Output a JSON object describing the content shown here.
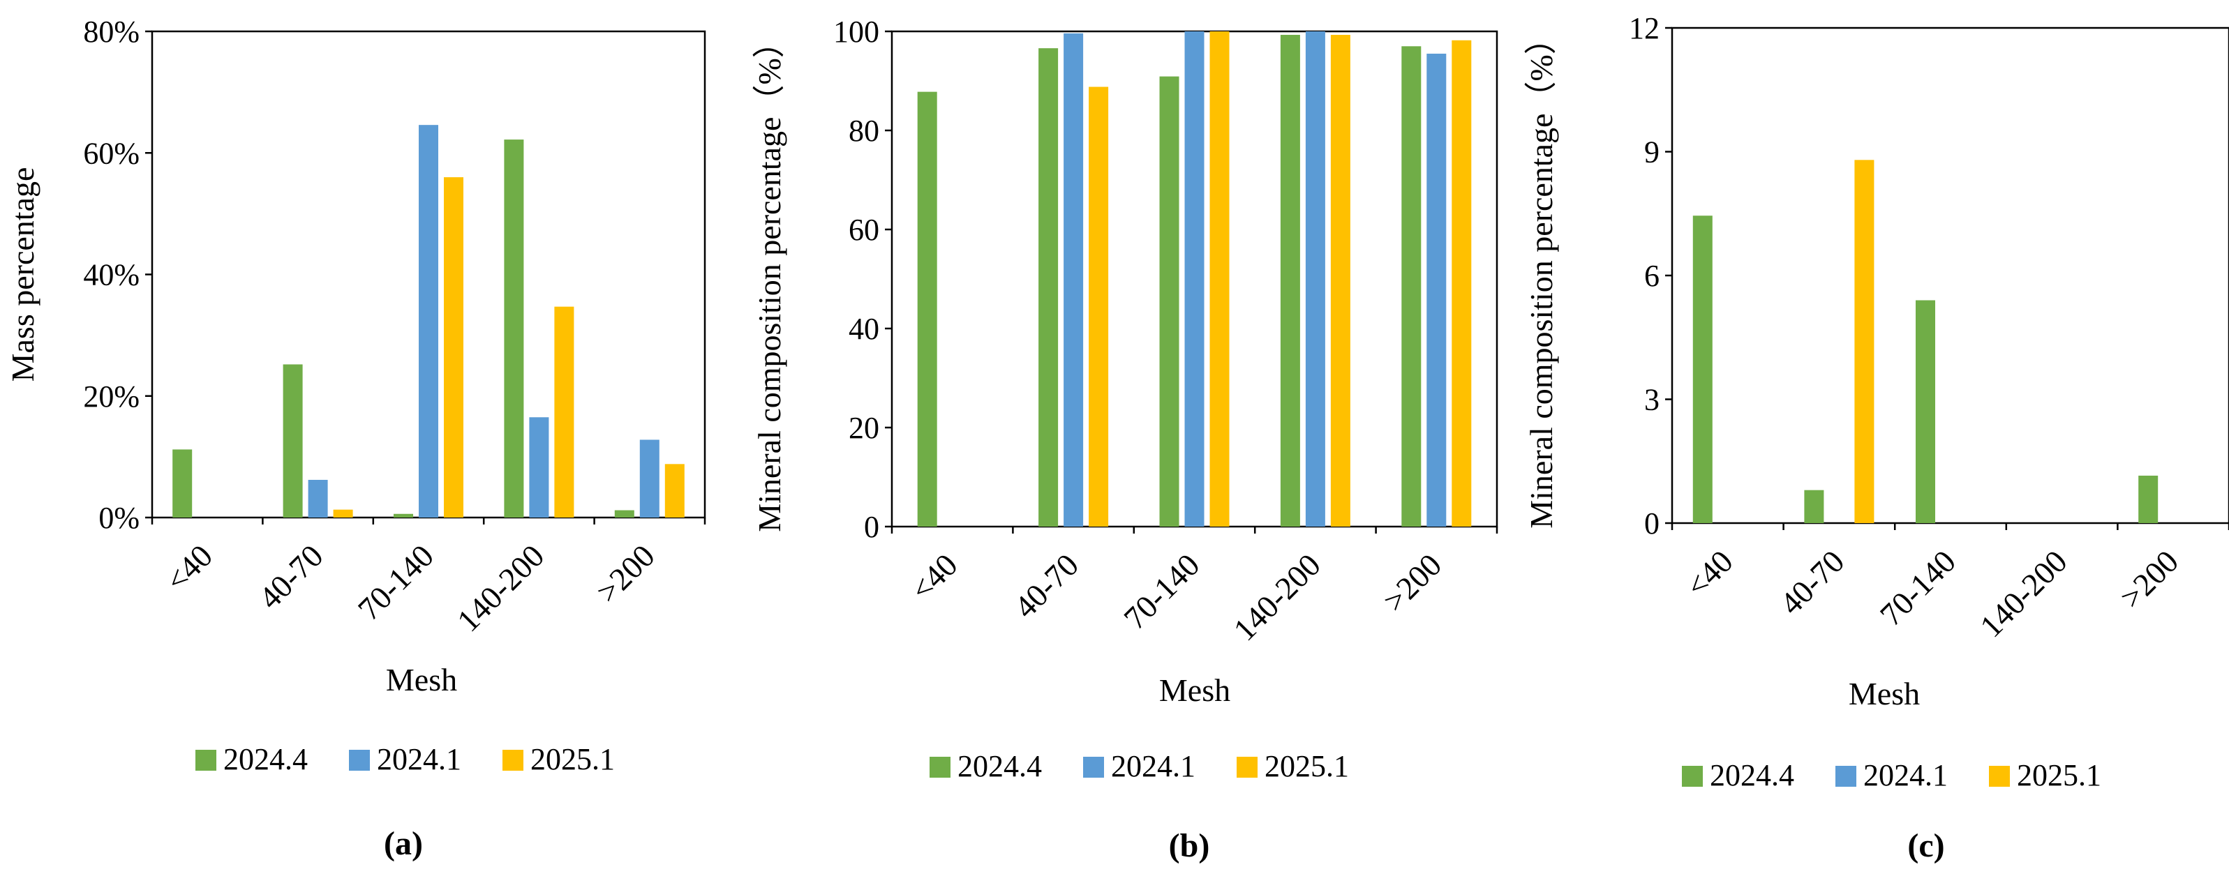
{
  "colors": {
    "2024.4": "#70AD47",
    "2024.1": "#5B9BD5",
    "2025.1": "#FFC000"
  },
  "legend_labels": [
    "2024.4",
    "2024.1",
    "2025.1"
  ],
  "chart_data": [
    {
      "type": "bar",
      "panel": "(a)",
      "title": "",
      "xlabel": "Mesh",
      "ylabel": "Mass percentage",
      "categories": [
        "<40",
        "40-70",
        "70-140",
        "140-200",
        ">200"
      ],
      "ylim": [
        0,
        80
      ],
      "yticks": [
        0,
        20,
        40,
        60,
        80
      ],
      "ytick_labels": [
        "0%",
        "20%",
        "40%",
        "60%",
        "80%"
      ],
      "grid": false,
      "legend": "bottom",
      "series": [
        {
          "name": "2024.4",
          "values": [
            11.2,
            25.2,
            0.6,
            62.2,
            1.2
          ]
        },
        {
          "name": "2024.1",
          "values": [
            0,
            6.2,
            64.6,
            16.5,
            12.8
          ]
        },
        {
          "name": "2025.1",
          "values": [
            0,
            1.3,
            56.0,
            34.7,
            8.8
          ]
        }
      ]
    },
    {
      "type": "bar",
      "panel": "(b)",
      "title": "",
      "xlabel": "Mesh",
      "ylabel": "Mineral composition percentage（%）",
      "categories": [
        "<40",
        "40-70",
        "70-140",
        "140-200",
        ">200"
      ],
      "ylim": [
        0,
        100
      ],
      "yticks": [
        0,
        20,
        40,
        60,
        80,
        100
      ],
      "ytick_labels": [
        "0",
        "20",
        "40",
        "60",
        "80",
        "100"
      ],
      "grid": false,
      "legend": "bottom",
      "series": [
        {
          "name": "2024.4",
          "values": [
            87.8,
            96.6,
            90.9,
            99.3,
            97.0
          ]
        },
        {
          "name": "2024.1",
          "values": [
            0,
            99.6,
            100,
            100,
            95.5
          ]
        },
        {
          "name": "2025.1",
          "values": [
            0,
            88.8,
            100,
            99.3,
            98.2
          ]
        }
      ]
    },
    {
      "type": "bar",
      "panel": "(c)",
      "title": "",
      "xlabel": "Mesh",
      "ylabel": "Mineral composition percentage（%）",
      "categories": [
        "<40",
        "40-70",
        "70-140",
        "140-200",
        ">200"
      ],
      "ylim": [
        0,
        12
      ],
      "yticks": [
        0,
        3,
        6,
        9,
        12
      ],
      "ytick_labels": [
        "0",
        "3",
        "6",
        "9",
        "12"
      ],
      "grid": false,
      "legend": "bottom",
      "series": [
        {
          "name": "2024.4",
          "values": [
            7.45,
            0.8,
            5.4,
            0,
            1.15
          ]
        },
        {
          "name": "2024.1",
          "values": [
            0,
            0,
            0,
            0,
            0
          ]
        },
        {
          "name": "2025.1",
          "values": [
            0,
            8.8,
            0,
            0,
            0
          ]
        }
      ]
    }
  ]
}
